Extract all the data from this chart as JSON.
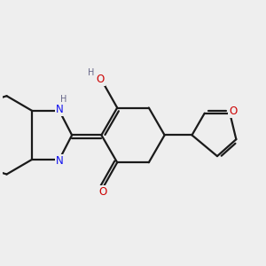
{
  "bg_color": "#eeeeee",
  "bond_color": "#1a1a1a",
  "bond_width": 1.6,
  "N_color": "#1010ee",
  "O_color": "#cc0000",
  "H_color": "#666688",
  "font_size_atom": 8.5,
  "font_size_H": 7.0,
  "xlim": [
    -3.0,
    3.2
  ],
  "ylim": [
    -2.4,
    2.4
  ]
}
